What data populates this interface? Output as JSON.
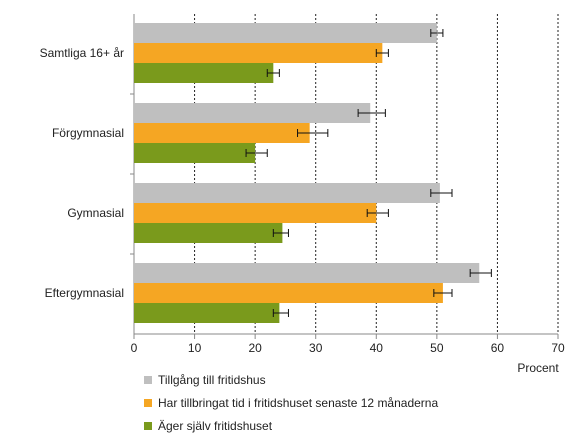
{
  "chart_data": {
    "type": "bar",
    "orientation": "horizontal",
    "categories": [
      "Samtliga 16+ år",
      "Förgymnasial",
      "Gymnasial",
      "Eftergymnasial"
    ],
    "series": [
      {
        "name": "Tillgång till fritidshus",
        "color": "#bfbfbf",
        "values": [
          50,
          39,
          50.5,
          57
        ],
        "error_low": [
          49,
          37,
          49,
          55.5
        ],
        "error_high": [
          51,
          41.5,
          52.5,
          59
        ]
      },
      {
        "name": "Har tillbringat tid i fritidshuset senaste 12 månaderna",
        "color": "#f5a623",
        "values": [
          41,
          29,
          40,
          51
        ],
        "error_low": [
          40,
          27,
          38.5,
          49.5
        ],
        "error_high": [
          42,
          32,
          42,
          52.5
        ]
      },
      {
        "name": "Äger själv fritidshuset",
        "color": "#7a9a1c",
        "values": [
          23,
          20,
          24.5,
          24
        ],
        "error_low": [
          22,
          18.5,
          23,
          23
        ],
        "error_high": [
          24,
          22,
          25.5,
          25.5
        ]
      }
    ],
    "xlim": [
      0,
      70
    ],
    "xticks": [
      "0",
      "10",
      "20",
      "30",
      "40",
      "50",
      "60",
      "70"
    ],
    "xlabel": "Procent",
    "grid": "vertical-dashed",
    "legend_position": "bottom-left"
  }
}
